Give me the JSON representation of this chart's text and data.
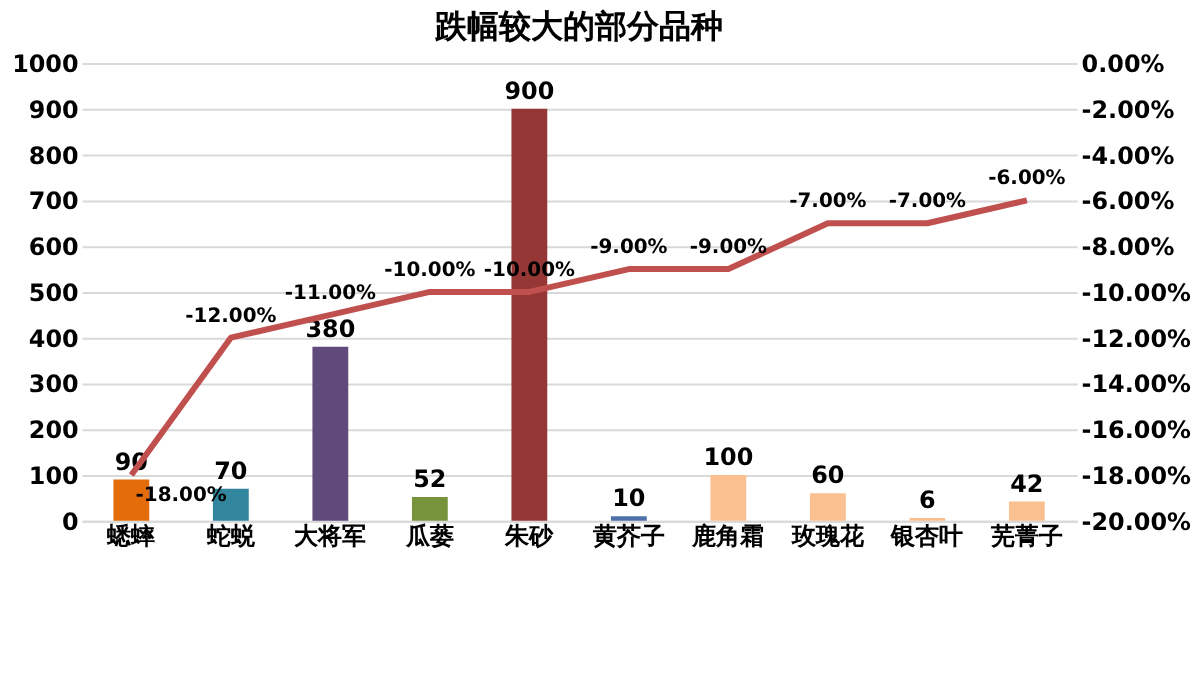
{
  "chart_data": {
    "type": "bar",
    "title": "跌幅较大的部分品种",
    "categories": [
      "蟋蟀",
      "蛇蜕",
      "大将军",
      "瓜蒌",
      "朱砂",
      "黄芥子",
      "鹿角霜",
      "玫瑰花",
      "银杏叶",
      "芜菁子"
    ],
    "series": [
      {
        "colors": [
          "#e46c0a",
          "#31859c",
          "#604a7b",
          "#77933c",
          "#953735",
          "#4f6fa8",
          "#fac090",
          "#fac090",
          "#fac090",
          "#fac090"
        ],
        "values": [
          90,
          70,
          380,
          52,
          900,
          10,
          100,
          60,
          6,
          42
        ],
        "value_labels": [
          "90",
          "70",
          "380",
          "52",
          "900",
          "10",
          "100",
          "60",
          "6",
          "42"
        ]
      },
      {
        "type": "line",
        "axis": "y2",
        "color": "#c0504d",
        "values": [
          -18,
          -12,
          -11,
          -10,
          -10,
          -9,
          -9,
          -7,
          -7,
          -6
        ],
        "value_labels": [
          "-18.00%",
          "-12.00%",
          "-11.00%",
          "-10.00%",
          "-10.00%",
          "-9.00%",
          "-9.00%",
          "-7.00%",
          "-7.00%",
          "-6.00%"
        ]
      }
    ],
    "ylim": [
      0,
      1000
    ],
    "yticks": [
      0,
      100,
      200,
      300,
      400,
      500,
      600,
      700,
      800,
      900,
      1000
    ],
    "y2lim": [
      -20,
      0
    ],
    "y2ticks": [
      {
        "value": 0,
        "label": "0.00%"
      },
      {
        "value": -2,
        "label": "-2.00%"
      },
      {
        "value": -4,
        "label": "-4.00%"
      },
      {
        "value": -6,
        "label": "-6.00%"
      },
      {
        "value": -8,
        "label": "-8.00%"
      },
      {
        "value": -10,
        "label": "-10.00%"
      },
      {
        "value": -12,
        "label": "-12.00%"
      },
      {
        "value": -14,
        "label": "-14.00%"
      },
      {
        "value": -16,
        "label": "-16.00%"
      },
      {
        "value": -18,
        "label": "-18.00%"
      },
      {
        "value": -20,
        "label": "-20.00%"
      }
    ],
    "grid": "y"
  }
}
